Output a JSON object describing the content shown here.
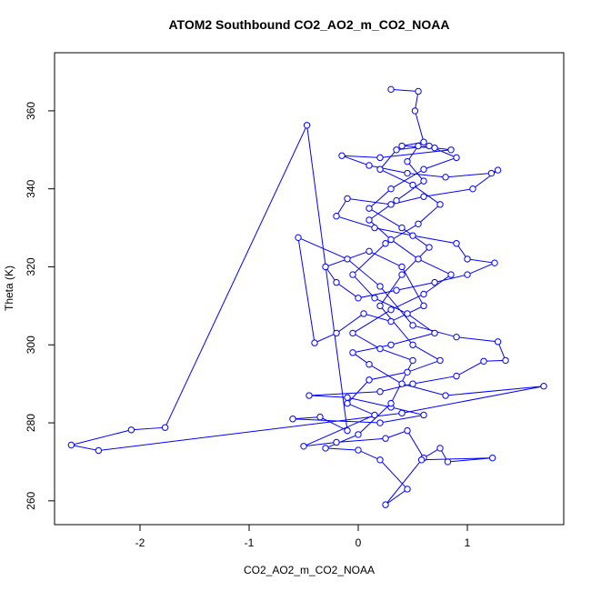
{
  "chart_data": {
    "type": "line",
    "title": "ATOM2 Southbound CO2_AO2_m_CO2_NOAA",
    "x_label": "CO2_AO2_m_CO2_NOAA",
    "y_label": "Theta (K)",
    "xlim": [
      -2.783,
      1.883
    ],
    "ylim": [
      253.9,
      374.9
    ],
    "xticks": [
      -2,
      -1,
      0,
      1
    ],
    "yticks": [
      260,
      280,
      300,
      320,
      340,
      360
    ],
    "x": [
      0.3,
      0.55,
      0.52,
      0.6,
      0.4,
      0.7,
      0.85,
      0.2,
      -0.15,
      0.1,
      0.45,
      0.8,
      1.22,
      1.28,
      1.05,
      0.6,
      0.3,
      -0.1,
      -0.2,
      0.15,
      0.5,
      0.9,
      1.0,
      1.25,
      1.0,
      0.7,
      0.35,
      0.0,
      -0.2,
      -0.3,
      0.1,
      0.4,
      0.6,
      0.3,
      0.05,
      -0.2,
      -0.4,
      -0.55,
      -0.1,
      0.2,
      0.5,
      0.9,
      1.28,
      1.35,
      1.15,
      0.9,
      0.5,
      0.2,
      -0.45,
      -0.1,
      0.3,
      0.6,
      0.2,
      -0.6,
      -0.35,
      -0.1,
      -0.47,
      -1.77,
      -2.08,
      -2.63,
      -2.38,
      0.4,
      1.7,
      0.8,
      0.4,
      0.1,
      -0.05,
      0.3,
      0.7,
      0.45,
      0.15,
      -0.05,
      0.25,
      0.55,
      0.75,
      0.5,
      0.2,
      0.35,
      0.65,
      0.9,
      0.6,
      0.3,
      0.1,
      0.4,
      0.65,
      0.4,
      0.2,
      0.5,
      0.75,
      0.45,
      0.1,
      -0.1,
      0.15,
      -0.5,
      -0.2,
      0.25,
      0.45,
      0.6,
      0.75,
      0.82,
      1.23,
      0.58,
      0.25,
      0.45,
      0.2,
      0.0,
      -0.3,
      0.0,
      0.3,
      0.5,
      0.2,
      -0.05,
      0.3,
      0.6,
      0.85,
      0.55,
      0.3,
      0.1,
      0.35,
      0.6,
      0.45,
      0.55
    ],
    "series": [
      {
        "color": "#0000ff",
        "values": [
          365.5,
          365,
          360,
          352,
          351,
          350.5,
          350,
          348,
          348.5,
          346,
          344,
          343,
          344,
          344.8,
          340,
          338,
          336,
          337.5,
          333,
          330,
          328,
          326,
          322,
          321,
          318,
          316,
          314,
          312,
          316,
          320,
          324,
          320,
          310,
          306,
          308,
          303,
          300.5,
          327.5,
          322,
          315,
          305,
          302,
          300.8,
          296,
          295.8,
          292,
          290,
          288,
          287,
          286.5,
          284,
          282,
          280,
          281,
          281.5,
          278,
          356.3,
          278.8,
          278.2,
          274.3,
          272.9,
          282.5,
          289.4,
          287,
          290,
          295,
          298,
          300,
          303,
          308,
          312,
          318,
          326,
          331,
          336,
          341,
          345,
          350,
          351,
          348,
          345,
          340,
          335,
          330,
          325,
          318,
          310,
          300,
          296,
          293,
          291,
          285,
          282,
          274,
          275,
          276,
          278,
          271,
          273.5,
          270,
          271,
          270.5,
          259,
          263,
          270.5,
          273,
          273.5,
          277,
          285,
          296,
          299,
          303,
          309,
          313,
          318,
          322,
          327,
          332,
          337,
          342,
          347,
          351
        ]
      }
    ]
  }
}
